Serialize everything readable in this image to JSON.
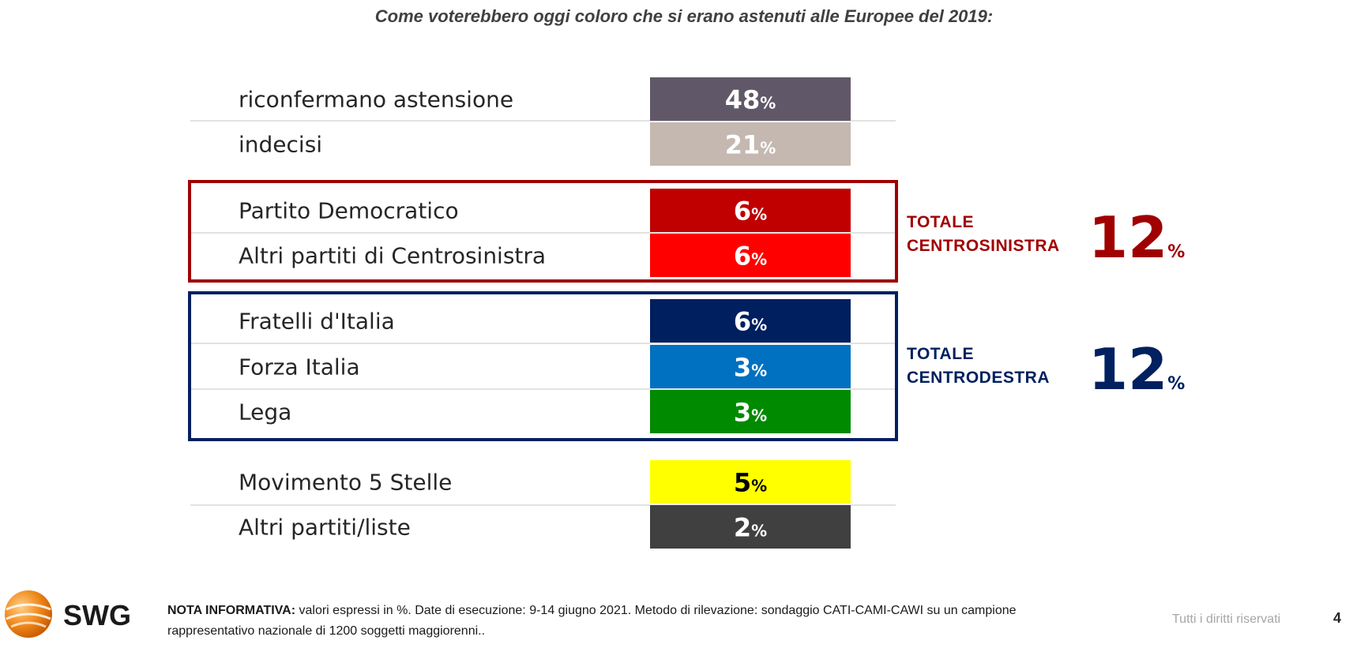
{
  "title": "Come voterebbero oggi coloro che si erano astenuti alle Europee del 2019:",
  "chart_data": {
    "type": "table",
    "unit": "%",
    "rows": [
      {
        "label": "riconfermano astensione",
        "value": 48,
        "color": "#605868",
        "text_color": "#ffffff"
      },
      {
        "label": "indecisi",
        "value": 21,
        "color": "#c4b8b0",
        "text_color": "#ffffff"
      },
      {
        "label": "Partito Democratico",
        "value": 6,
        "color": "#c00000",
        "text_color": "#ffffff"
      },
      {
        "label": "Altri partiti di Centrosinistra",
        "value": 6,
        "color": "#ff0000",
        "text_color": "#ffffff"
      },
      {
        "label": "Fratelli d'Italia",
        "value": 6,
        "color": "#001f5f",
        "text_color": "#ffffff"
      },
      {
        "label": "Forza Italia",
        "value": 3,
        "color": "#0070c0",
        "text_color": "#ffffff"
      },
      {
        "label": "Lega",
        "value": 3,
        "color": "#008a00",
        "text_color": "#ffffff"
      },
      {
        "label": "Movimento 5 Stelle",
        "value": 5,
        "color": "#ffff00",
        "text_color": "#000000"
      },
      {
        "label": "Altri partiti/liste",
        "value": 2,
        "color": "#404040",
        "text_color": "#ffffff"
      }
    ],
    "groups": [
      {
        "label_line1": "TOTALE",
        "label_line2": "CENTROSINISTRA",
        "value": "12",
        "unit": "%",
        "color": "#a00000"
      },
      {
        "label_line1": "TOTALE",
        "label_line2": "CENTRODESTRA",
        "value": "12",
        "unit": "%",
        "color": "#002060"
      }
    ]
  },
  "logo": {
    "text": "SWG"
  },
  "footer": {
    "note_label": "NOTA INFORMATIVA:",
    "note_text": " valori espressi in %. Date di esecuzione: 9-14 giugno 2021. Metodo di rilevazione: sondaggio CATI-CAMI-CAWI su un campione rappresentativo nazionale di 1200 soggetti maggiorenni..",
    "rights": "Tutti i diritti riservati",
    "page": "4"
  }
}
